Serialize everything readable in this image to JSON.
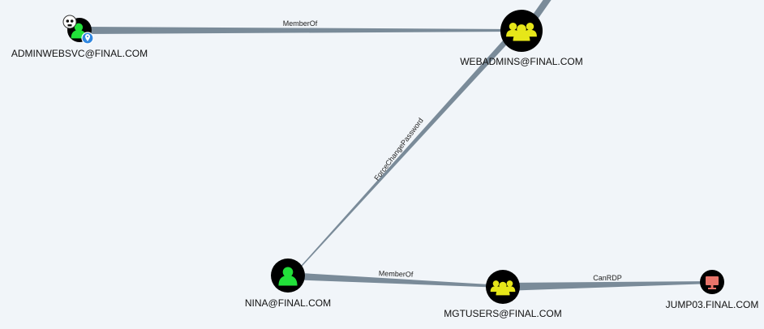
{
  "nodes": [
    {
      "id": "adminwebsvc",
      "label": "ADMINWEBSVC@FINAL.COM",
      "kind": "user",
      "icon": "user-icon",
      "icon_color": "#22e03a",
      "badges": [
        "skull-icon",
        "location-pin-icon"
      ]
    },
    {
      "id": "webadmins",
      "label": "WEBADMINS@FINAL.COM",
      "kind": "group",
      "icon": "group-icon",
      "icon_color": "#e6e619"
    },
    {
      "id": "nina",
      "label": "NINA@FINAL.COM",
      "kind": "user",
      "icon": "user-icon",
      "icon_color": "#22e03a"
    },
    {
      "id": "mgtusers",
      "label": "MGTUSERS@FINAL.COM",
      "kind": "group",
      "icon": "group-icon",
      "icon_color": "#e6e619"
    },
    {
      "id": "jump03",
      "label": "JUMP03.FINAL.COM",
      "kind": "computer",
      "icon": "monitor-icon",
      "icon_color": "#e8746a"
    }
  ],
  "edges": [
    {
      "id": "e1",
      "source": "adminwebsvc",
      "target": "webadmins",
      "label": "MemberOf"
    },
    {
      "id": "e2",
      "source": "nina",
      "target": "webadmins",
      "label": "ForceChangePassword"
    },
    {
      "id": "e3",
      "source": "nina",
      "target": "mgtusers",
      "label": "MemberOf"
    },
    {
      "id": "e4",
      "source": "mgtusers",
      "target": "jump03",
      "label": "CanRDP"
    },
    {
      "id": "e5",
      "source": "webadmins",
      "target": "offscreen",
      "label": ""
    }
  ],
  "colors": {
    "background": "#f1f5f9",
    "edge": "#7a8b99",
    "node_fill": "#000000"
  }
}
